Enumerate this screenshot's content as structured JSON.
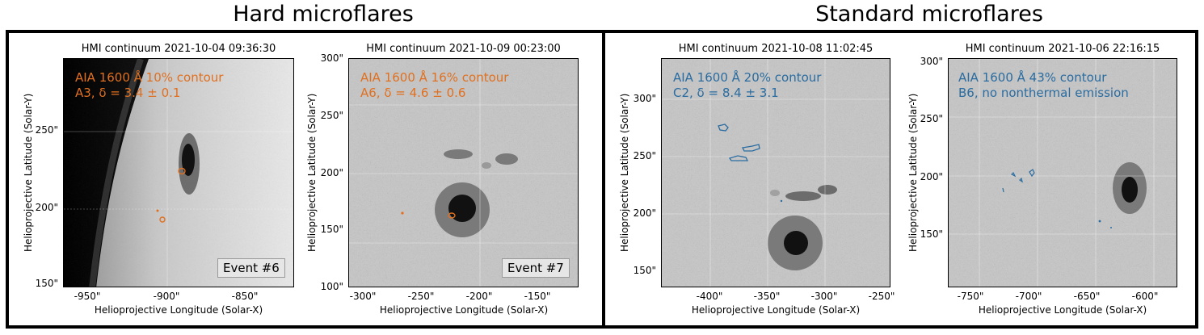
{
  "titles": {
    "hard": "Hard microflares",
    "standard": "Standard microflares"
  },
  "colors": {
    "hard_contour": "#e07020",
    "standard_contour": "#2a6ca0",
    "frame": "#000000"
  },
  "panels": [
    {
      "title": "HMI continuum 2021-10-04 09:36:30",
      "xlabel": "Helioprojective Longitude (Solar-X)",
      "ylabel": "Helioprojective Latitude (Solar-Y)",
      "yticks": [
        "250\"",
        "200\"",
        "150\""
      ],
      "xticks": [
        "-950\"",
        "-900\"",
        "-850\""
      ],
      "anno1": "AIA 1600 Å 10% contour",
      "anno2": "A3, δ = 3.4 ± 0.1",
      "event": "Event #6"
    },
    {
      "title": "HMI continuum 2021-10-09 00:23:00",
      "xlabel": "Helioprojective Longitude (Solar-X)",
      "ylabel": "Helioprojective Latitude (Solar-Y)",
      "yticks": [
        "300\"",
        "250\"",
        "200\"",
        "150\"",
        "100\""
      ],
      "xticks": [
        "-300\"",
        "-250\"",
        "-200\"",
        "-150\""
      ],
      "anno1": "AIA 1600 Å 16% contour",
      "anno2": "A6, δ = 4.6 ± 0.6",
      "event": "Event #7"
    },
    {
      "title": "HMI continuum 2021-10-08 11:02:45",
      "xlabel": "Helioprojective Longitude (Solar-X)",
      "ylabel": "Helioprojective Latitude (Solar-Y)",
      "yticks": [
        "300\"",
        "250\"",
        "200\"",
        "150\""
      ],
      "xticks": [
        "-400\"",
        "-350\"",
        "-300\"",
        "-250\""
      ],
      "anno1": "AIA 1600 Å 20% contour",
      "anno2": "C2, δ = 8.4 ± 3.1"
    },
    {
      "title": "HMI continuum 2021-10-06 22:16:15",
      "xlabel": "Helioprojective Longitude (Solar-X)",
      "ylabel": "Helioprojective Latitude (Solar-Y)",
      "yticks": [
        "300\"",
        "250\"",
        "200\"",
        "150\""
      ],
      "xticks": [
        "-750\"",
        "-700\"",
        "-650\"",
        "-600\""
      ],
      "anno1": "AIA 1600 Å 43% contour",
      "anno2": "B6, no nonthermal emission"
    }
  ]
}
